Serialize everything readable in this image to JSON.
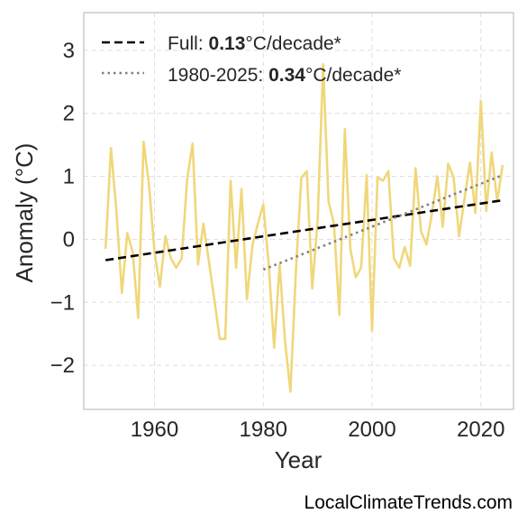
{
  "chart_data": {
    "type": "line",
    "title": "",
    "xlabel": "Year",
    "ylabel": "Anomaly (°C)",
    "xlim": [
      1947,
      2026
    ],
    "ylim": [
      -2.7,
      3.6
    ],
    "xticks": [
      1960,
      1980,
      2000,
      2020
    ],
    "yticks": [
      -2,
      -1,
      0,
      1,
      2,
      3
    ],
    "ytick_labels": [
      "−2",
      "−1",
      "0",
      "1",
      "2",
      "3"
    ],
    "grid": true,
    "legend_position": "top-left",
    "series": [
      {
        "color": "#f0d77a",
        "x": [
          1951,
          1952,
          1953,
          1954,
          1955,
          1956,
          1957,
          1958,
          1959,
          1960,
          1961,
          1962,
          1963,
          1964,
          1965,
          1966,
          1967,
          1968,
          1969,
          1970,
          1971,
          1972,
          1973,
          1974,
          1975,
          1976,
          1977,
          1978,
          1979,
          1980,
          1981,
          1982,
          1983,
          1984,
          1985,
          1986,
          1987,
          1988,
          1989,
          1990,
          1991,
          1992,
          1993,
          1994,
          1995,
          1996,
          1997,
          1998,
          1999,
          2000,
          2001,
          2002,
          2003,
          2004,
          2005,
          2006,
          2007,
          2008,
          2009,
          2010,
          2011,
          2012,
          2013,
          2014,
          2015,
          2016,
          2017,
          2018,
          2019,
          2020,
          2021,
          2022,
          2023,
          2024
        ],
        "values": [
          -0.15,
          1.45,
          0.45,
          -0.85,
          0.1,
          -0.2,
          -1.25,
          1.55,
          0.85,
          -0.2,
          -0.75,
          0.05,
          -0.3,
          -0.45,
          -0.3,
          0.95,
          1.52,
          -0.4,
          0.25,
          -0.35,
          -0.95,
          -1.58,
          -1.58,
          0.93,
          -0.45,
          0.8,
          -0.95,
          -0.1,
          0.25,
          0.55,
          -0.4,
          -1.72,
          -0.4,
          -1.62,
          -2.42,
          -0.5,
          0.98,
          1.08,
          -0.78,
          0.3,
          2.78,
          0.6,
          0.25,
          -1.2,
          1.75,
          -0.15,
          -0.6,
          -0.45,
          1.02,
          -1.45,
          0.98,
          0.93,
          1.08,
          -0.3,
          -0.45,
          -0.12,
          -0.42,
          1.13,
          0.12,
          -0.08,
          0.4,
          1.0,
          0.2,
          1.2,
          0.98,
          0.05,
          0.65,
          1.22,
          0.42,
          2.2,
          0.45,
          1.38,
          0.6,
          1.18
        ]
      },
      {
        "name": "Full: 0.13°C/decade*",
        "style": "dashed",
        "color": "#000000",
        "x": [
          1951,
          2024
        ],
        "values": [
          -0.33,
          0.62
        ]
      },
      {
        "name": "1980-2025: 0.34°C/decade*",
        "style": "dotted",
        "color": "#808080",
        "x": [
          1980,
          2024
        ],
        "values": [
          -0.48,
          1.02
        ]
      }
    ],
    "legend": [
      {
        "prefix": "Full: ",
        "bold": "0.13",
        "suffix": "°C/decade*"
      },
      {
        "prefix": "1980-2025: ",
        "bold": "0.34",
        "suffix": "°C/decade*"
      }
    ]
  },
  "credit": "LocalClimateTrends.com"
}
